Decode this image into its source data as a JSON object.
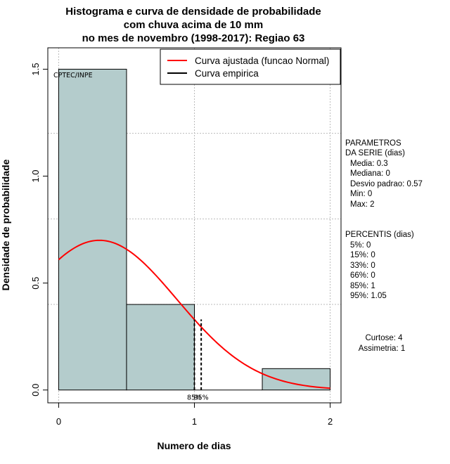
{
  "title_lines": [
    "Histograma e curva de densidade de probabilidade",
    "com chuva acima de 10 mm",
    "no mes de novembro (1998-2017): Regiao 63"
  ],
  "credit": "CPTEC/INPE",
  "legend": {
    "fitted_label": "Curva ajustada (funcao Normal)",
    "empirical_label": "Curva empirica"
  },
  "colors": {
    "bar_fill": "#b4cccc",
    "fitted_curve": "#ff0000",
    "grid": "#bbbbbb"
  },
  "parameters": {
    "header": [
      "PARAMETROS",
      "DA SERIE (dias)"
    ],
    "lines": [
      "Media: 0.3",
      "Mediana: 0",
      "Desvio padrao: 0.57",
      "Min: 0",
      "Max: 2"
    ]
  },
  "percentiles": {
    "header": "PERCENTIS (dias)",
    "lines": [
      "5%: 0",
      "15%: 0",
      "33%: 0",
      "66%: 0",
      "85%: 1",
      "95%: 1.05"
    ]
  },
  "shape": {
    "kurtosis": "Curtose: 4",
    "skewness": "Assimetria: 1"
  },
  "chart_data": {
    "type": "bar",
    "title": "Histograma e curva de densidade de probabilidade com chuva acima de 10 mm no mes de novembro (1998-2017): Regiao 63",
    "xlabel": "Numero de dias",
    "ylabel": "Densidade de probabilidade",
    "xlim": [
      -0.08,
      2.08
    ],
    "ylim": [
      -0.06,
      1.6
    ],
    "x_ticks": [
      0,
      1,
      2
    ],
    "x_tick_labels": [
      "0",
      "1",
      "2"
    ],
    "y_ticks": [
      0.0,
      0.5,
      1.0,
      1.5
    ],
    "y_tick_labels": [
      "0.0",
      "0.5",
      "1.0",
      "1.5"
    ],
    "grid": true,
    "bins": [
      {
        "x0": 0.0,
        "x1": 0.5,
        "density": 1.5
      },
      {
        "x0": 0.5,
        "x1": 1.0,
        "density": 0.4
      },
      {
        "x0": 1.0,
        "x1": 1.5,
        "density": 0.0
      },
      {
        "x0": 1.5,
        "x1": 2.0,
        "density": 0.1
      }
    ],
    "normal_fit": {
      "mean": 0.3,
      "sd": 0.57,
      "x_from": 0,
      "x_to": 2
    },
    "percentile_lines": [
      {
        "x": 1.0,
        "label": "85%"
      },
      {
        "x": 1.05,
        "label": "95%"
      }
    ],
    "percentile_line_height": 0.33,
    "legend_position": "top-right"
  }
}
